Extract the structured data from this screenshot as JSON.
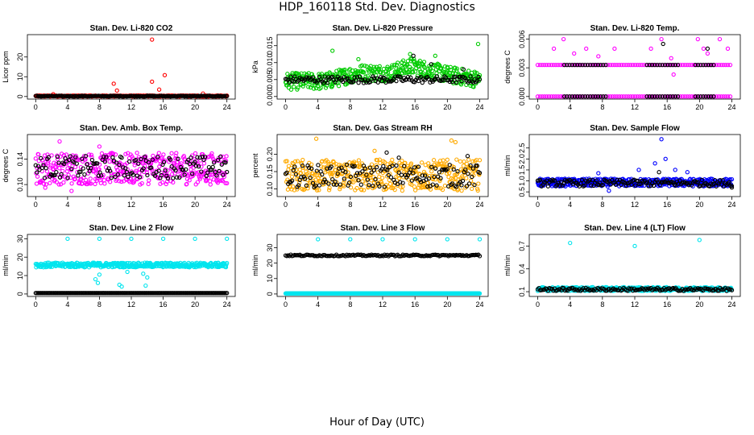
{
  "page": {
    "title": "HDP_160118  Std. Dev. Diagnostics",
    "xlabel": "Hour of Day (UTC)"
  },
  "chart_data": [
    {
      "type": "scatter",
      "title": "Stan. Dev. Li-820 CO2",
      "xlabel": "",
      "ylabel": "Licor ppm",
      "xlim": [
        0,
        24
      ],
      "ylim": [
        0,
        30
      ],
      "xticks": [
        "0",
        "4",
        "8",
        "12",
        "16",
        "20",
        "24"
      ],
      "yticks": [
        0,
        10,
        20
      ],
      "series": [
        {
          "color": "#ff0000",
          "band": [
            0,
            0.5
          ],
          "outliers": [
            [
              2.2,
              1.2
            ],
            [
              9.8,
              6.5
            ],
            [
              10.2,
              3.0
            ],
            [
              14.6,
              7.5
            ],
            [
              14.6,
              28.8
            ],
            [
              15.5,
              3.5
            ],
            [
              16.2,
              10.8
            ],
            [
              21.0,
              1.5
            ]
          ]
        },
        {
          "color": "#000000",
          "band": [
            0,
            0.4
          ],
          "outliers": []
        }
      ]
    },
    {
      "type": "scatter",
      "title": "Stan. Dev. Li-820 Pressure",
      "xlabel": "",
      "ylabel": "kPa",
      "xlim": [
        0,
        24
      ],
      "ylim": [
        0,
        0.0175
      ],
      "xticks": [
        "0",
        "4",
        "8",
        "12",
        "16",
        "20",
        "24"
      ],
      "yticks": [
        "0.000",
        "0.005",
        "0.010",
        "0.015"
      ],
      "series": [
        {
          "color": "#00cc00",
          "band": [
            0.002,
            0.007
          ],
          "trend": [
            [
              0,
              0.0045
            ],
            [
              5,
              0.0045
            ],
            [
              9,
              0.007
            ],
            [
              13,
              0.007
            ],
            [
              15.5,
              0.009
            ],
            [
              20,
              0.0065
            ],
            [
              24,
              0.005
            ]
          ],
          "outliers": [
            [
              5.8,
              0.0135
            ],
            [
              9.0,
              0.011
            ],
            [
              15.4,
              0.0125
            ],
            [
              23.8,
              0.0155
            ],
            [
              18.5,
              0.012
            ]
          ]
        },
        {
          "color": "#000000",
          "band": [
            0.004,
            0.006
          ],
          "outliers": [
            [
              15.8,
              0.012
            ],
            [
              18.0,
              0.0095
            ],
            [
              22.0,
              0.008
            ]
          ]
        }
      ]
    },
    {
      "type": "scatter",
      "title": "Stan. Dev. Li-820 Temp.",
      "xlabel": "",
      "ylabel": "degrees C",
      "xlim": [
        0,
        24
      ],
      "ylim": [
        0,
        0.0062
      ],
      "xticks": [
        "0",
        "4",
        "8",
        "12",
        "16",
        "20",
        "24"
      ],
      "yticks": [
        "0.000",
        "0.003",
        "0.006"
      ],
      "series": [
        {
          "color": "#ff00ff",
          "levels": [
            0.0,
            0.0033
          ],
          "outliers": [
            [
              2.0,
              0.005
            ],
            [
              3.2,
              0.006
            ],
            [
              4.5,
              0.0045
            ],
            [
              6.0,
              0.005
            ],
            [
              7.5,
              0.0042
            ],
            [
              9.5,
              0.005
            ],
            [
              14.0,
              0.005
            ],
            [
              15.3,
              0.006
            ],
            [
              16.5,
              0.004
            ],
            [
              16.8,
              0.0023
            ],
            [
              19.8,
              0.006
            ],
            [
              20.5,
              0.005
            ],
            [
              21.0,
              0.0045
            ],
            [
              22.5,
              0.006
            ],
            [
              23.5,
              0.005
            ]
          ]
        },
        {
          "color": "#000000",
          "levels": [
            0.0,
            0.0033
          ],
          "ranges": [
            [
              3.3,
              8.5
            ],
            [
              13.5,
              17.5
            ],
            [
              19.5,
              22
            ]
          ],
          "outliers": [
            [
              15.5,
              0.0055
            ],
            [
              21.0,
              0.005
            ]
          ]
        }
      ]
    },
    {
      "type": "scatter",
      "title": "Stan. Dev. Amb. Box Temp.",
      "xlabel": "",
      "ylabel": "degrees C",
      "xlim": [
        0,
        24
      ],
      "ylim": [
        0.085,
        0.175
      ],
      "xticks": [
        "0",
        "4",
        "8",
        "12",
        "16",
        "20",
        "24"
      ],
      "yticks": [
        "0.10",
        "0.14"
      ],
      "series": [
        {
          "color": "#ff00ff",
          "band": [
            0.1,
            0.15
          ],
          "outliers": [
            [
              3.0,
              0.168
            ],
            [
              1.2,
              0.095
            ],
            [
              4.5,
              0.09
            ],
            [
              8.0,
              0.16
            ]
          ]
        },
        {
          "color": "#000000",
          "band": [
            0.11,
            0.145
          ],
          "outliers": []
        }
      ]
    },
    {
      "type": "scatter",
      "title": "Stan. Dev. Gas Stream RH",
      "xlabel": "",
      "ylabel": "percent",
      "xlim": [
        0,
        24
      ],
      "ylim": [
        0.085,
        0.25
      ],
      "xticks": [
        "0",
        "4",
        "8",
        "12",
        "16",
        "20",
        "24"
      ],
      "yticks": [
        "0.10",
        "0.15",
        "0.20"
      ],
      "series": [
        {
          "color": "#ffaa00",
          "band": [
            0.095,
            0.185
          ],
          "outliers": [
            [
              3.8,
              0.245
            ],
            [
              11.0,
              0.21
            ],
            [
              20.5,
              0.24
            ],
            [
              21.0,
              0.235
            ]
          ]
        },
        {
          "color": "#000000",
          "band": [
            0.105,
            0.17
          ],
          "outliers": [
            [
              12.5,
              0.205
            ],
            [
              14.0,
              0.19
            ],
            [
              22.5,
              0.195
            ]
          ]
        }
      ]
    },
    {
      "type": "scatter",
      "title": "Stan. Dev. Sample Flow",
      "xlabel": "",
      "ylabel": "ml/min",
      "xlim": [
        0,
        24
      ],
      "ylim": [
        0.4,
        3.0
      ],
      "xticks": [
        "0",
        "4",
        "8",
        "12",
        "16",
        "20",
        "24"
      ],
      "yticks": [
        "0.5",
        "1.0",
        "1.5",
        "2.0",
        "2.5"
      ],
      "series": [
        {
          "color": "#0000ff",
          "band": [
            0.75,
            1.1
          ],
          "outliers": [
            [
              15.3,
              2.9
            ],
            [
              14.5,
              1.8
            ],
            [
              15.8,
              2.0
            ],
            [
              12.5,
              1.5
            ],
            [
              7.5,
              1.35
            ],
            [
              8.8,
              0.55
            ],
            [
              17.0,
              1.5
            ],
            [
              18.5,
              1.4
            ]
          ]
        },
        {
          "color": "#000000",
          "band": [
            0.75,
            1.05
          ],
          "outliers": [
            [
              15.0,
              1.4
            ],
            [
              24.0,
              0.7
            ]
          ]
        }
      ]
    },
    {
      "type": "scatter",
      "title": "Stan. Dev. Line 2 Flow",
      "xlabel": "",
      "ylabel": "ml/min",
      "xlim": [
        0,
        24
      ],
      "ylim": [
        0,
        31
      ],
      "xticks": [
        "0",
        "4",
        "8",
        "12",
        "16",
        "20",
        "24"
      ],
      "yticks": [
        0,
        10,
        20,
        30
      ],
      "series": [
        {
          "color": "#00e5ee",
          "band": [
            14.5,
            17.0
          ],
          "outliers": [
            [
              4.0,
              30.0
            ],
            [
              8.0,
              30.0
            ],
            [
              12.0,
              30.0
            ],
            [
              16.0,
              30.0
            ],
            [
              20.0,
              30.0
            ],
            [
              24.0,
              30.0
            ],
            [
              7.5,
              8.0
            ],
            [
              7.8,
              6.0
            ],
            [
              8.0,
              10.5
            ],
            [
              10.5,
              5.0
            ],
            [
              10.8,
              4.0
            ],
            [
              13.8,
              4.5
            ],
            [
              11.5,
              12.0
            ],
            [
              13.5,
              11.0
            ],
            [
              14.0,
              9.0
            ]
          ]
        },
        {
          "color": "#000000",
          "band": [
            0.5,
            0.5
          ],
          "outliers": []
        }
      ]
    },
    {
      "type": "scatter",
      "title": "Stan. Dev. Line 3 Flow",
      "xlabel": "",
      "ylabel": "ml/min",
      "xlim": [
        0,
        24
      ],
      "ylim": [
        0,
        37
      ],
      "xticks": [
        "0",
        "4",
        "8",
        "12",
        "16",
        "20",
        "24"
      ],
      "yticks": [
        0,
        10,
        20,
        30
      ],
      "series": [
        {
          "color": "#00e5ee",
          "band": [
            0.3,
            0.3
          ],
          "outliers": [
            [
              4.0,
              35.5
            ],
            [
              8.0,
              35.5
            ],
            [
              12.0,
              35.5
            ],
            [
              16.0,
              35.5
            ],
            [
              20.0,
              35.5
            ],
            [
              24.0,
              35.5
            ]
          ]
        },
        {
          "color": "#000000",
          "band": [
            24.5,
            25.5
          ],
          "outliers": []
        }
      ]
    },
    {
      "type": "scatter",
      "title": "Stan. Dev. Line 4 (LT) Flow",
      "xlabel": "",
      "ylabel": "ml/min",
      "xlim": [
        0,
        24
      ],
      "ylim": [
        0.07,
        0.82
      ],
      "xticks": [
        "0",
        "4",
        "8",
        "12",
        "16",
        "20",
        "24"
      ],
      "yticks": [
        "0.1",
        "0.4",
        "0.7"
      ],
      "series": [
        {
          "color": "#00e5ee",
          "band": [
            0.11,
            0.16
          ],
          "outliers": [
            [
              4.0,
              0.74
            ],
            [
              12.0,
              0.7
            ],
            [
              20.0,
              0.78
            ]
          ]
        },
        {
          "color": "#000000",
          "band": [
            0.11,
            0.15
          ],
          "outliers": []
        }
      ]
    }
  ]
}
